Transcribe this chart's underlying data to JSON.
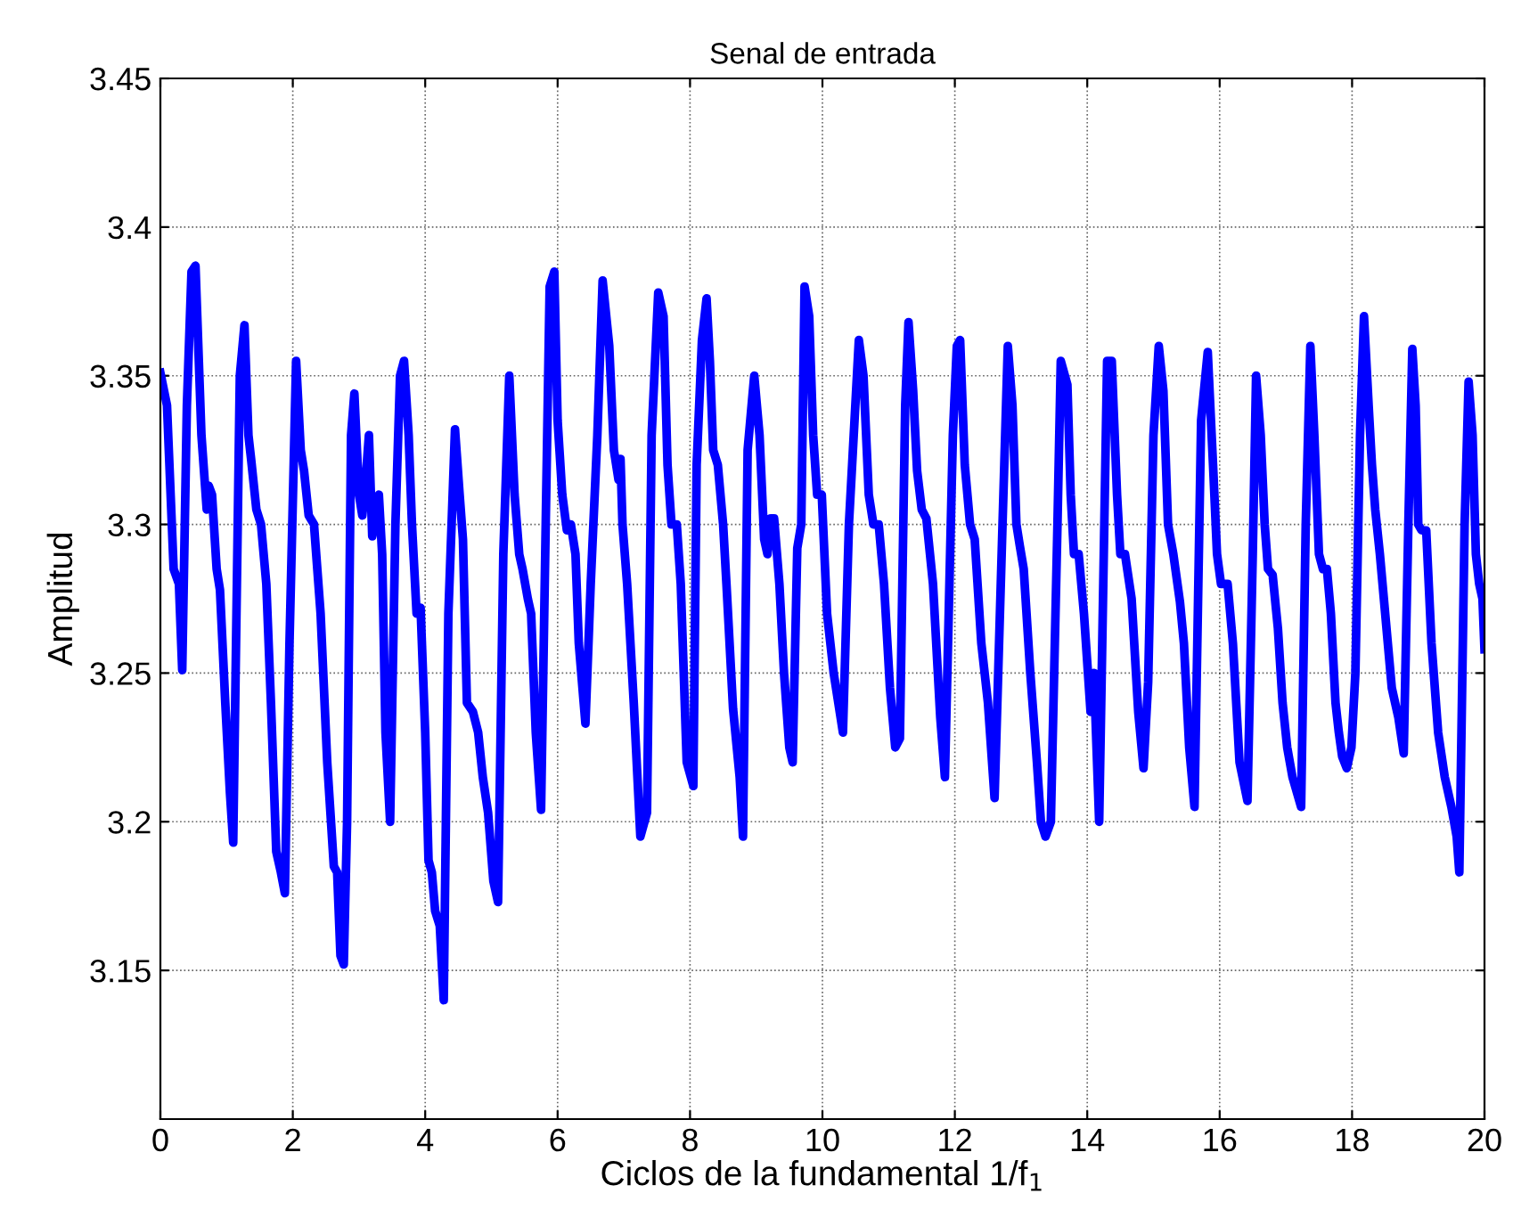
{
  "chart_data": {
    "type": "line",
    "title": "Senal de entrada",
    "xlabel": "Ciclos de la fundamental 1/f$_{1}$",
    "ylabel": "Amplitud",
    "xlim": [
      0,
      20
    ],
    "ylim": [
      3.1,
      3.45
    ],
    "xticks": [
      0,
      2,
      4,
      6,
      8,
      10,
      12,
      14,
      16,
      18,
      20
    ],
    "yticks": [
      3.15,
      3.2,
      3.25,
      3.3,
      3.35,
      3.4,
      3.45
    ],
    "grid": true,
    "line_style": "solid",
    "series": [
      {
        "color": "#0000ff",
        "x": [
          0,
          0.1,
          0.2,
          0.28,
          0.33,
          0.4,
          0.47,
          0.53,
          0.62,
          0.7,
          0.73,
          0.78,
          0.85,
          0.9,
          0.98,
          1.05,
          1.1,
          1.2,
          1.27,
          1.33,
          1.37,
          1.45,
          1.52,
          1.6,
          1.67,
          1.75,
          1.82,
          1.88,
          1.95,
          2.05,
          2.12,
          2.17,
          2.24,
          2.32,
          2.42,
          2.52,
          2.62,
          2.67,
          2.72,
          2.77,
          2.82,
          2.88,
          2.93,
          3.0,
          3.05,
          3.1,
          3.15,
          3.2,
          3.3,
          3.35,
          3.4,
          3.47,
          3.55,
          3.62,
          3.68,
          3.75,
          3.8,
          3.87,
          3.93,
          4.0,
          4.05,
          4.1,
          4.15,
          4.22,
          4.28,
          4.35,
          4.45,
          4.52,
          4.57,
          4.63,
          4.72,
          4.8,
          4.87,
          4.95,
          5.03,
          5.1,
          5.18,
          5.27,
          5.35,
          5.42,
          5.47,
          5.55,
          5.6,
          5.67,
          5.75,
          5.82,
          5.88,
          5.95,
          6.0,
          6.07,
          6.14,
          6.2,
          6.27,
          6.32,
          6.42,
          6.5,
          6.6,
          6.68,
          6.78,
          6.85,
          6.92,
          6.95,
          6.98,
          7.05,
          7.15,
          7.25,
          7.35,
          7.42,
          7.52,
          7.6,
          7.66,
          7.72,
          7.8,
          7.86,
          7.95,
          8.05,
          8.1,
          8.18,
          8.25,
          8.3,
          8.35,
          8.42,
          8.5,
          8.55,
          8.65,
          8.75,
          8.8,
          8.87,
          8.97,
          9.05,
          9.12,
          9.17,
          9.22,
          9.27,
          9.35,
          9.42,
          9.5,
          9.55,
          9.62,
          9.68,
          9.73,
          9.8,
          9.86,
          9.92,
          9.99,
          10.07,
          10.17,
          10.31,
          10.4,
          10.55,
          10.62,
          10.7,
          10.77,
          10.85,
          10.93,
          11.02,
          11.1,
          11.17,
          11.25,
          11.3,
          11.37,
          11.43,
          11.5,
          11.57,
          11.67,
          11.78,
          11.85,
          11.97,
          12.03,
          12.08,
          12.15,
          12.23,
          12.3,
          12.4,
          12.5,
          12.6,
          12.72,
          12.8,
          12.87,
          12.93,
          12.98,
          13.04,
          13.14,
          13.24,
          13.3,
          13.37,
          13.45,
          13.55,
          13.6,
          13.7,
          13.75,
          13.8,
          13.87,
          13.95,
          14.05,
          14.1,
          14.18,
          14.3,
          14.37,
          14.45,
          14.5,
          14.57,
          14.67,
          14.77,
          14.85,
          14.92,
          15.0,
          15.08,
          15.15,
          15.22,
          15.3,
          15.4,
          15.46,
          15.54,
          15.62,
          15.72,
          15.82,
          15.9,
          15.96,
          16.02,
          16.12,
          16.2,
          16.3,
          16.42,
          16.5,
          16.55,
          16.62,
          16.68,
          16.73,
          16.8,
          16.88,
          16.95,
          17.02,
          17.1,
          17.23,
          17.3,
          17.37,
          17.43,
          17.5,
          17.56,
          17.62,
          17.68,
          17.75,
          17.8,
          17.85,
          17.92,
          17.99,
          18.05,
          18.12,
          18.18,
          18.25,
          18.3,
          18.35,
          18.42,
          18.5,
          18.6,
          18.7,
          18.78,
          18.85,
          18.91,
          18.96,
          19.0,
          19.05,
          19.12,
          19.2,
          19.3,
          19.4,
          19.5,
          19.58,
          19.62,
          19.7,
          19.76,
          19.82,
          19.87,
          19.92,
          19.97,
          20.0
        ],
        "values": [
          3.351,
          3.34,
          3.285,
          3.28,
          3.251,
          3.34,
          3.385,
          3.387,
          3.33,
          3.305,
          3.313,
          3.31,
          3.285,
          3.278,
          3.24,
          3.21,
          3.193,
          3.35,
          3.367,
          3.33,
          3.322,
          3.305,
          3.3,
          3.28,
          3.24,
          3.19,
          3.183,
          3.176,
          3.26,
          3.355,
          3.325,
          3.318,
          3.303,
          3.3,
          3.27,
          3.22,
          3.185,
          3.183,
          3.155,
          3.152,
          3.2,
          3.33,
          3.344,
          3.31,
          3.303,
          3.315,
          3.33,
          3.296,
          3.31,
          3.29,
          3.23,
          3.2,
          3.3,
          3.35,
          3.355,
          3.33,
          3.3,
          3.27,
          3.272,
          3.23,
          3.187,
          3.183,
          3.17,
          3.165,
          3.14,
          3.27,
          3.332,
          3.31,
          3.295,
          3.24,
          3.237,
          3.23,
          3.215,
          3.203,
          3.18,
          3.173,
          3.29,
          3.35,
          3.31,
          3.29,
          3.285,
          3.275,
          3.27,
          3.23,
          3.204,
          3.3,
          3.38,
          3.385,
          3.335,
          3.31,
          3.298,
          3.3,
          3.29,
          3.26,
          3.233,
          3.28,
          3.33,
          3.382,
          3.36,
          3.325,
          3.315,
          3.322,
          3.3,
          3.28,
          3.24,
          3.195,
          3.203,
          3.33,
          3.378,
          3.37,
          3.32,
          3.3,
          3.3,
          3.28,
          3.22,
          3.212,
          3.32,
          3.362,
          3.376,
          3.355,
          3.325,
          3.32,
          3.3,
          3.28,
          3.238,
          3.215,
          3.195,
          3.325,
          3.35,
          3.33,
          3.295,
          3.29,
          3.302,
          3.302,
          3.28,
          3.25,
          3.225,
          3.22,
          3.292,
          3.3,
          3.38,
          3.37,
          3.33,
          3.31,
          3.31,
          3.27,
          3.25,
          3.23,
          3.3,
          3.362,
          3.35,
          3.31,
          3.3,
          3.3,
          3.28,
          3.245,
          3.225,
          3.228,
          3.34,
          3.368,
          3.345,
          3.318,
          3.305,
          3.302,
          3.28,
          3.235,
          3.215,
          3.33,
          3.36,
          3.362,
          3.32,
          3.3,
          3.295,
          3.26,
          3.24,
          3.208,
          3.3,
          3.36,
          3.34,
          3.3,
          3.293,
          3.285,
          3.25,
          3.22,
          3.2,
          3.195,
          3.2,
          3.3,
          3.355,
          3.347,
          3.31,
          3.29,
          3.29,
          3.27,
          3.237,
          3.25,
          3.2,
          3.355,
          3.355,
          3.31,
          3.29,
          3.29,
          3.275,
          3.237,
          3.218,
          3.247,
          3.33,
          3.36,
          3.345,
          3.3,
          3.29,
          3.274,
          3.26,
          3.225,
          3.205,
          3.335,
          3.358,
          3.32,
          3.29,
          3.28,
          3.28,
          3.26,
          3.22,
          3.207,
          3.29,
          3.35,
          3.33,
          3.3,
          3.285,
          3.283,
          3.265,
          3.24,
          3.225,
          3.215,
          3.205,
          3.3,
          3.36,
          3.33,
          3.29,
          3.285,
          3.285,
          3.27,
          3.24,
          3.23,
          3.222,
          3.218,
          3.225,
          3.25,
          3.33,
          3.37,
          3.34,
          3.32,
          3.305,
          3.29,
          3.27,
          3.245,
          3.235,
          3.223,
          3.3,
          3.359,
          3.34,
          3.3,
          3.298,
          3.298,
          3.26,
          3.23,
          3.215,
          3.205,
          3.195,
          3.183,
          3.3,
          3.348,
          3.33,
          3.29,
          3.28,
          3.275,
          3.258
        ]
      }
    ]
  }
}
